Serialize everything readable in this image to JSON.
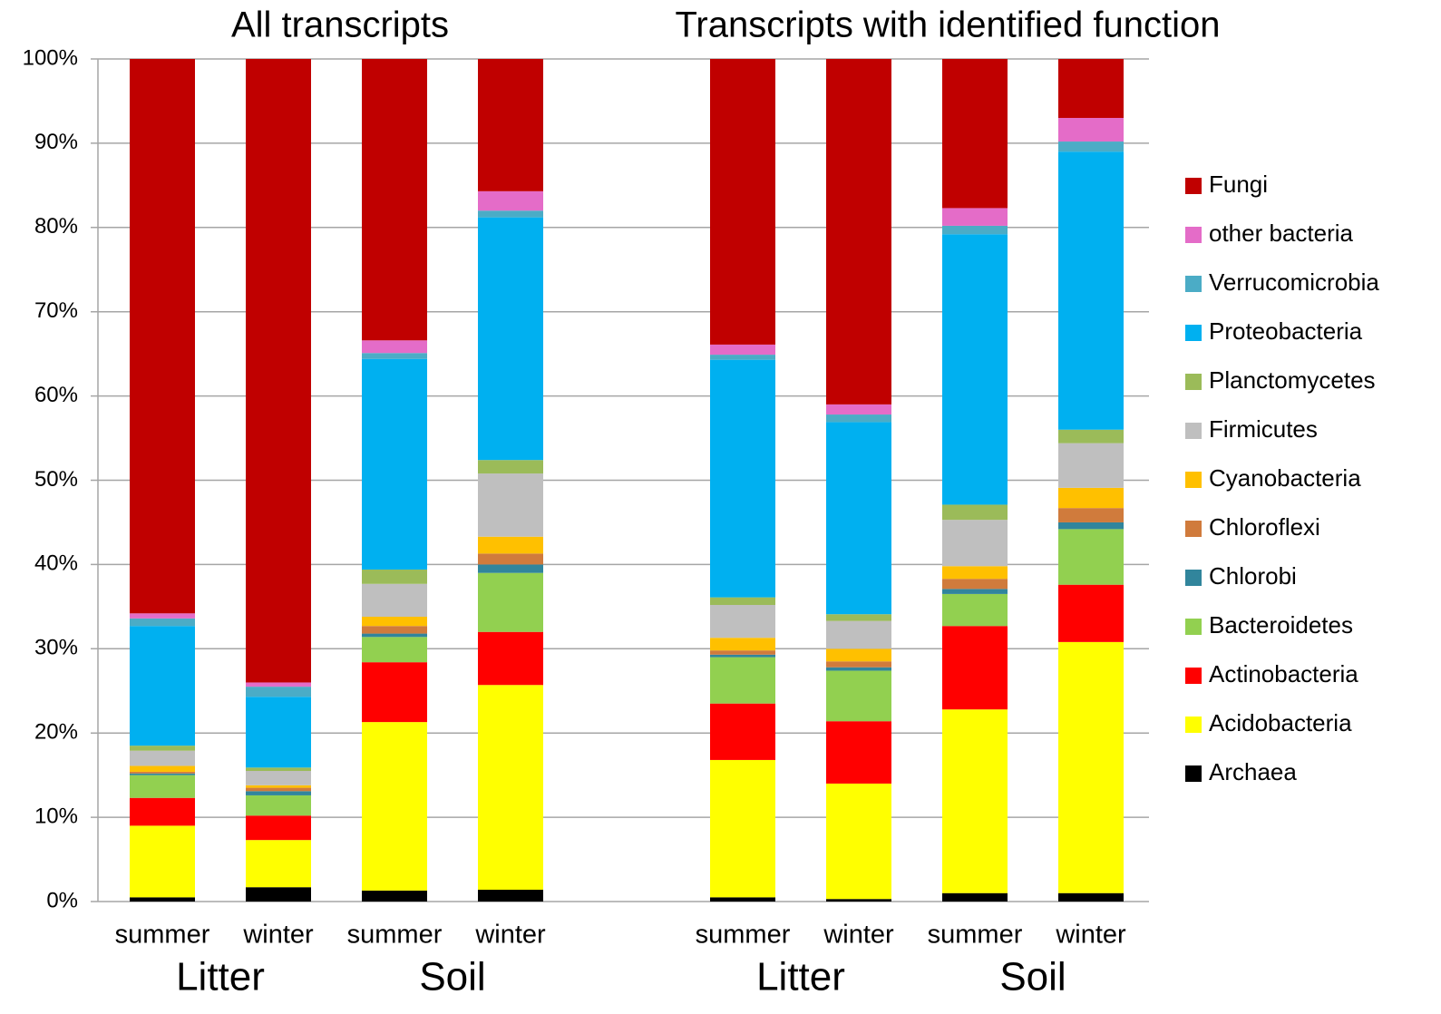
{
  "chart_data": {
    "type": "stacked_bar",
    "panel_titles": [
      "All transcripts",
      "Transcripts with identified function"
    ],
    "group_labels": [
      "Litter",
      "Soil",
      "Litter",
      "Soil"
    ],
    "categories": [
      "summer",
      "winter",
      "summer",
      "winter",
      null,
      "summer",
      "winter",
      "summer",
      "winter"
    ],
    "series": [
      {
        "name": "Archaea",
        "color": "#000000",
        "values": [
          0.5,
          1.7,
          1.3,
          1.4,
          null,
          0.5,
          0.3,
          1.0,
          1.0
        ]
      },
      {
        "name": "Acidobacteria",
        "color": "#ffff00",
        "values": [
          8.5,
          5.6,
          20.0,
          24.3,
          null,
          16.3,
          13.7,
          21.8,
          29.8
        ]
      },
      {
        "name": "Actinobacteria",
        "color": "#ff0000",
        "values": [
          3.3,
          2.9,
          7.1,
          6.3,
          null,
          6.7,
          7.4,
          9.9,
          6.8
        ]
      },
      {
        "name": "Bacteroidetes",
        "color": "#92d050",
        "values": [
          2.7,
          2.4,
          3.0,
          7.0,
          null,
          5.5,
          6.0,
          3.8,
          6.6
        ]
      },
      {
        "name": "Chlorobi",
        "color": "#31859c",
        "values": [
          0.2,
          0.5,
          0.4,
          1.0,
          null,
          0.3,
          0.4,
          0.6,
          0.8
        ]
      },
      {
        "name": "Chloroflexi",
        "color": "#d07b3c",
        "values": [
          0.2,
          0.4,
          0.9,
          1.3,
          null,
          0.5,
          0.7,
          1.2,
          1.7
        ]
      },
      {
        "name": "Cyanobacteria",
        "color": "#ffc000",
        "values": [
          0.7,
          0.3,
          1.1,
          2.0,
          null,
          1.5,
          1.5,
          1.5,
          2.4
        ]
      },
      {
        "name": "Firmicutes",
        "color": "#bfbfbf",
        "values": [
          1.8,
          1.7,
          3.9,
          7.5,
          null,
          3.9,
          3.3,
          5.5,
          5.3
        ]
      },
      {
        "name": "Planctomycetes",
        "color": "#9bbb59",
        "values": [
          0.6,
          0.4,
          1.7,
          1.6,
          null,
          0.9,
          0.8,
          1.8,
          1.6
        ]
      },
      {
        "name": "Proteobacteria",
        "color": "#00b0f0",
        "values": [
          14.2,
          8.4,
          25.0,
          28.8,
          null,
          28.2,
          22.8,
          32.1,
          33.0
        ]
      },
      {
        "name": "Verrucomicrobia",
        "color": "#4bacc6",
        "values": [
          0.9,
          1.2,
          0.7,
          0.8,
          null,
          0.6,
          0.9,
          1.0,
          1.2
        ]
      },
      {
        "name": "other bacteria",
        "color": "#e46cc8",
        "values": [
          0.6,
          0.5,
          1.5,
          2.3,
          null,
          1.2,
          1.2,
          2.1,
          2.8
        ]
      },
      {
        "name": "Fungi",
        "color": "#c00000",
        "values": [
          65.8,
          74.0,
          33.4,
          15.7,
          null,
          33.9,
          41.0,
          17.7,
          7.0
        ]
      }
    ],
    "ylim": [
      0,
      100
    ],
    "yticks": [
      {
        "value": 0,
        "label": "0%"
      },
      {
        "value": 10,
        "label": "10%"
      },
      {
        "value": 20,
        "label": "20%"
      },
      {
        "value": 30,
        "label": "30%"
      },
      {
        "value": 40,
        "label": "40%"
      },
      {
        "value": 50,
        "label": "50%"
      },
      {
        "value": 60,
        "label": "60%"
      },
      {
        "value": 70,
        "label": "70%"
      },
      {
        "value": 80,
        "label": "80%"
      },
      {
        "value": 90,
        "label": "90%"
      },
      {
        "value": 100,
        "label": "100%"
      }
    ],
    "grid": true,
    "legend": "right"
  }
}
